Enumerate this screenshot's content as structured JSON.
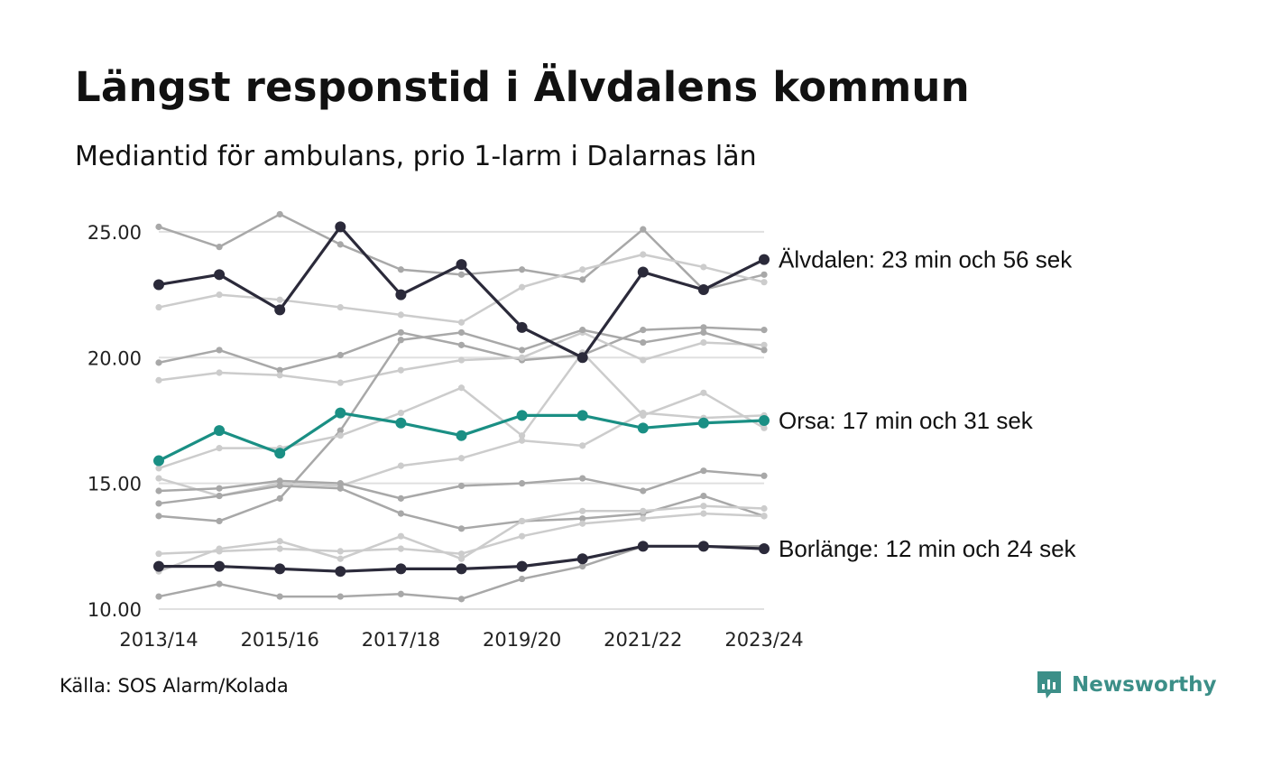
{
  "header": {
    "title": "Längst responstid i Älvdalens kommun",
    "subtitle": "Mediantid för ambulans, prio 1-larm i Dalarnas län"
  },
  "footer": {
    "source": "Källa: SOS Alarm/Kolada",
    "brand": "Newsworthy"
  },
  "colors": {
    "highlight_dark": "#2b2a3a",
    "highlight_teal": "#1a8f84",
    "background_dark": "#a8a8a8",
    "background_light": "#cccccc",
    "grid": "#e0e0e0",
    "brand": "#3c8f88"
  },
  "icons": {
    "brand_logo": "newsworthy-logo-icon"
  },
  "chart_data": {
    "type": "line",
    "x": [
      "2013/14",
      "2014/15",
      "2015/16",
      "2016/17",
      "2017/18",
      "2018/19",
      "2019/20",
      "2020/21",
      "2021/22",
      "2022/23",
      "2023/24"
    ],
    "x_tick_labels": [
      "2013/14",
      "2015/16",
      "2017/18",
      "2019/20",
      "2021/22",
      "2023/24"
    ],
    "y_ticks": [
      "10.00",
      "15.00",
      "20.00",
      "25.00"
    ],
    "ylim": [
      10,
      25.5
    ],
    "grid": "horizontal",
    "highlighted": [
      {
        "name": "Älvdalen",
        "label": "Älvdalen: 23 min och 56 sek",
        "color": "#2b2a3a",
        "values": [
          22.9,
          23.3,
          21.9,
          25.2,
          22.5,
          23.7,
          21.2,
          20.0,
          23.4,
          22.7,
          23.9
        ]
      },
      {
        "name": "Orsa",
        "label": "Orsa: 17 min och 31 sek",
        "color": "#1a8f84",
        "values": [
          15.9,
          17.1,
          16.2,
          17.8,
          17.4,
          16.9,
          17.7,
          17.7,
          17.2,
          17.4,
          17.5
        ]
      },
      {
        "name": "Borlänge",
        "label": "Borlänge: 12 min och 24 sek",
        "color": "#2b2a3a",
        "values": [
          11.7,
          11.7,
          11.6,
          11.5,
          11.6,
          11.6,
          11.7,
          12.0,
          12.5,
          12.5,
          12.4
        ]
      }
    ],
    "background_series": [
      {
        "color": "#a8a8a8",
        "values": [
          25.2,
          24.4,
          25.7,
          24.5,
          23.5,
          23.3,
          23.5,
          23.1,
          25.1,
          22.7,
          23.3
        ]
      },
      {
        "color": "#cccccc",
        "values": [
          22.0,
          22.5,
          22.3,
          22.0,
          21.7,
          21.4,
          22.8,
          23.5,
          24.1,
          23.6,
          23.0
        ]
      },
      {
        "color": "#a8a8a8",
        "values": [
          19.8,
          20.3,
          19.5,
          20.1,
          21.0,
          20.5,
          19.9,
          20.1,
          21.1,
          21.2,
          21.1
        ]
      },
      {
        "color": "#cccccc",
        "values": [
          19.1,
          19.4,
          19.3,
          19.0,
          19.5,
          19.9,
          20.0,
          21.0,
          19.9,
          20.6,
          20.5
        ]
      },
      {
        "color": "#a8a8a8",
        "values": [
          13.7,
          13.5,
          14.4,
          17.1,
          20.7,
          21.0,
          20.3,
          21.1,
          20.6,
          21.0,
          20.3
        ]
      },
      {
        "color": "#cccccc",
        "values": [
          15.6,
          16.4,
          16.4,
          16.9,
          17.8,
          18.8,
          16.9,
          20.2,
          17.7,
          18.6,
          17.2
        ]
      },
      {
        "color": "#cccccc",
        "values": [
          15.2,
          14.5,
          15.0,
          14.9,
          15.7,
          16.0,
          16.7,
          16.5,
          17.8,
          17.6,
          17.7
        ]
      },
      {
        "color": "#a8a8a8",
        "values": [
          14.7,
          14.8,
          15.1,
          15.0,
          14.4,
          14.9,
          15.0,
          15.2,
          14.7,
          15.5,
          15.3
        ]
      },
      {
        "color": "#a8a8a8",
        "values": [
          14.2,
          14.5,
          14.9,
          14.8,
          13.8,
          13.2,
          13.5,
          13.6,
          13.8,
          14.5,
          13.7
        ]
      },
      {
        "color": "#cccccc",
        "values": [
          12.2,
          12.3,
          12.4,
          12.3,
          12.4,
          12.2,
          12.9,
          13.4,
          13.6,
          13.8,
          13.7
        ]
      },
      {
        "color": "#cccccc",
        "values": [
          11.5,
          12.4,
          12.7,
          12.0,
          12.9,
          12.0,
          13.5,
          13.9,
          13.9,
          14.1,
          14.0
        ]
      },
      {
        "color": "#a8a8a8",
        "values": [
          10.5,
          11.0,
          10.5,
          10.5,
          10.6,
          10.4,
          11.2,
          11.7,
          12.5,
          12.5,
          12.5
        ]
      }
    ]
  }
}
